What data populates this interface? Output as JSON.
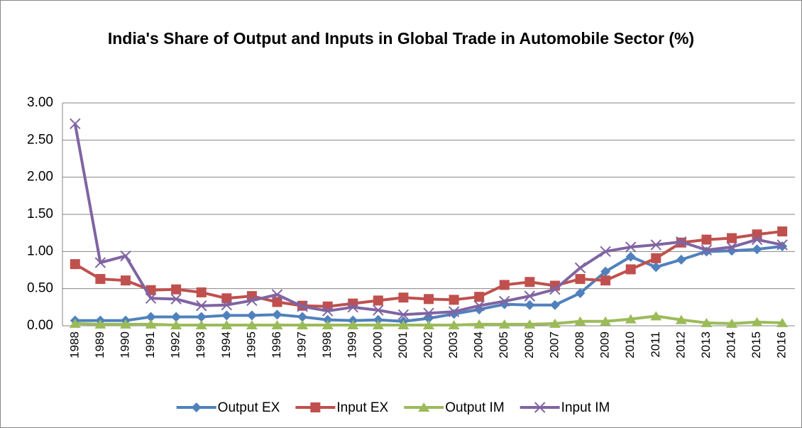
{
  "chart_data": {
    "type": "line",
    "title": "India's Share of Output and Inputs in Global Trade in Automobile Sector (%)",
    "categories": [
      "1988",
      "1989",
      "1990",
      "1991",
      "1992",
      "1993",
      "1994",
      "1995",
      "1996",
      "1997",
      "1998",
      "1999",
      "2000",
      "2001",
      "2002",
      "2003",
      "2004",
      "2005",
      "2006",
      "2007",
      "2008",
      "2009",
      "2010",
      "2011",
      "2012",
      "2013",
      "2014",
      "2015",
      "2016"
    ],
    "series": [
      {
        "name": "Output EX",
        "color": "#4f81bd",
        "marker": "diamond",
        "values": [
          0.07,
          0.07,
          0.07,
          0.12,
          0.12,
          0.12,
          0.14,
          0.14,
          0.15,
          0.12,
          0.08,
          0.07,
          0.08,
          0.06,
          0.1,
          0.16,
          0.22,
          0.29,
          0.28,
          0.28,
          0.44,
          0.73,
          0.93,
          0.79,
          0.89,
          1.0,
          1.01,
          1.03,
          1.07
        ]
      },
      {
        "name": "Input EX",
        "color": "#c0504d",
        "marker": "square",
        "values": [
          0.83,
          0.63,
          0.61,
          0.48,
          0.49,
          0.45,
          0.37,
          0.4,
          0.32,
          0.27,
          0.26,
          0.3,
          0.34,
          0.38,
          0.36,
          0.35,
          0.39,
          0.55,
          0.59,
          0.54,
          0.63,
          0.61,
          0.76,
          0.91,
          1.12,
          1.16,
          1.18,
          1.23,
          1.27
        ]
      },
      {
        "name": "Output IM",
        "color": "#9bbb59",
        "marker": "triangle",
        "values": [
          0.03,
          0.02,
          0.02,
          0.02,
          0.01,
          0.01,
          0.01,
          0.01,
          0.01,
          0.01,
          0.01,
          0.01,
          0.01,
          0.01,
          0.01,
          0.01,
          0.02,
          0.02,
          0.02,
          0.03,
          0.06,
          0.06,
          0.09,
          0.13,
          0.08,
          0.04,
          0.03,
          0.05,
          0.04
        ]
      },
      {
        "name": "Input IM",
        "color": "#8064a2",
        "marker": "x",
        "values": [
          2.72,
          0.85,
          0.94,
          0.37,
          0.36,
          0.27,
          0.28,
          0.34,
          0.42,
          0.26,
          0.2,
          0.25,
          0.21,
          0.15,
          0.17,
          0.19,
          0.27,
          0.33,
          0.4,
          0.49,
          0.78,
          1.0,
          1.06,
          1.09,
          1.13,
          1.02,
          1.06,
          1.16,
          1.09
        ]
      }
    ],
    "ylim": [
      0,
      3
    ],
    "yticks": [
      {
        "value": 0,
        "label": "0.00"
      },
      {
        "value": 0.5,
        "label": "0.50"
      },
      {
        "value": 1,
        "label": "1.00"
      },
      {
        "value": 1.5,
        "label": "1.50"
      },
      {
        "value": 2,
        "label": "2.00"
      },
      {
        "value": 2.5,
        "label": "2.50"
      },
      {
        "value": 3,
        "label": "3.00"
      }
    ],
    "grid": true,
    "legend": "bottom"
  }
}
